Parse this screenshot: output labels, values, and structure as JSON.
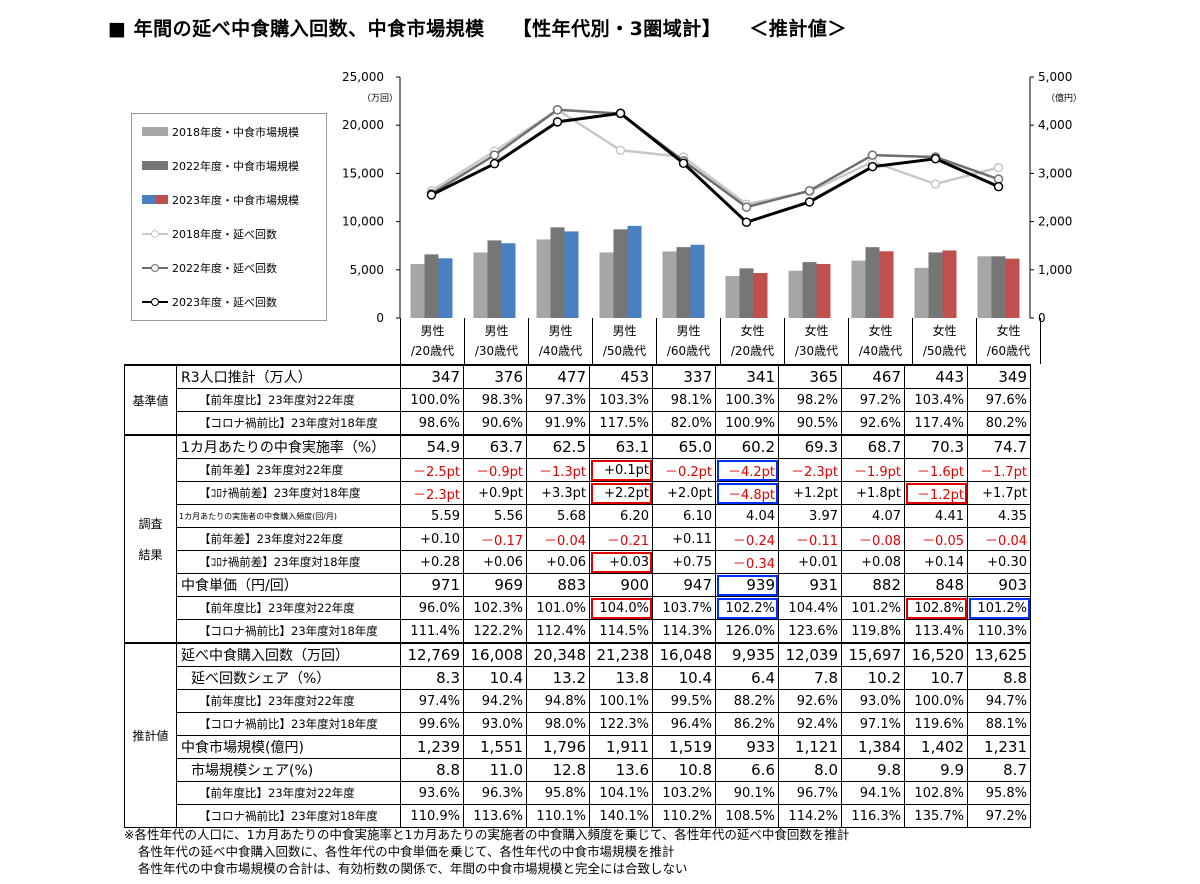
{
  "title": {
    "main": "■ 年間の延べ中食購入回数、中食市場規模",
    "bracket": "【性年代別・3圏域計】",
    "estimate": "＜推計値＞"
  },
  "chart_data": {
    "type": "bar",
    "categories": [
      "男性/20歳代",
      "男性/30歳代",
      "男性/40歳代",
      "男性/50歳代",
      "男性/60歳代",
      "女性/20歳代",
      "女性/30歳代",
      "女性/40歳代",
      "女性/50歳代",
      "女性/60歳代"
    ],
    "y_left": {
      "unit": "（万回）",
      "ylim": [
        0,
        25000
      ],
      "ticks": [
        "0",
        "5,000",
        "10,000",
        "15,000",
        "20,000",
        "25,000"
      ]
    },
    "y_right": {
      "unit": "（億円）",
      "ylim": [
        0,
        5000
      ],
      "ticks": [
        "0",
        "1,000",
        "2,000",
        "3,000",
        "4,000",
        "5,000"
      ]
    },
    "bars": [
      {
        "name": "2018年度・中食市場規模",
        "axis": "right",
        "color": "#a6a6a6",
        "values": [
          1120,
          1360,
          1630,
          1360,
          1380,
          870,
          980,
          1190,
          1040,
          1280
        ]
      },
      {
        "name": "2022年度・中食市場規模",
        "axis": "right",
        "color": "#767676",
        "values": [
          1320,
          1610,
          1880,
          1840,
          1470,
          1030,
          1160,
          1470,
          1360,
          1280
        ]
      },
      {
        "name": "2023年度・中食市場規模",
        "axis": "right",
        "colors": {
          "male": "#4a7fc1",
          "female": "#c0504d"
        },
        "values": [
          1239,
          1551,
          1796,
          1911,
          1519,
          933,
          1121,
          1384,
          1402,
          1231
        ]
      }
    ],
    "lines": [
      {
        "name": "2018年度・延べ回数",
        "axis": "left",
        "color": "#c8c8c8",
        "values": [
          13200,
          17300,
          21600,
          17400,
          16700,
          11800,
          13100,
          16200,
          13900,
          15600
        ]
      },
      {
        "name": "2022年度・延べ回数",
        "axis": "left",
        "color": "#6e6e6e",
        "values": [
          12900,
          16900,
          21600,
          21200,
          16300,
          11500,
          13200,
          16900,
          16700,
          14400
        ]
      },
      {
        "name": "2023年度・延べ回数",
        "axis": "left",
        "color": "#000000",
        "values": [
          12769,
          16008,
          20348,
          21238,
          16048,
          9935,
          12039,
          15697,
          16520,
          13625
        ]
      }
    ]
  },
  "columns": [
    {
      "top": "男性",
      "bottom": "/20歳代"
    },
    {
      "top": "男性",
      "bottom": "/30歳代"
    },
    {
      "top": "男性",
      "bottom": "/40歳代"
    },
    {
      "top": "男性",
      "bottom": "/50歳代"
    },
    {
      "top": "男性",
      "bottom": "/60歳代"
    },
    {
      "top": "女性",
      "bottom": "/20歳代"
    },
    {
      "top": "女性",
      "bottom": "/30歳代"
    },
    {
      "top": "女性",
      "bottom": "/40歳代"
    },
    {
      "top": "女性",
      "bottom": "/50歳代"
    },
    {
      "top": "女性",
      "bottom": "/60歳代"
    }
  ],
  "sections": [
    {
      "name": "基準値",
      "rows": [
        {
          "label": "R3人口推計（万人）",
          "style": "big",
          "values": [
            "347",
            "376",
            "477",
            "453",
            "337",
            "341",
            "365",
            "467",
            "443",
            "349"
          ]
        },
        {
          "label": "【前年度比】23年度対22年度",
          "style": "sub",
          "values": [
            "100.0%",
            "98.3%",
            "97.3%",
            "103.3%",
            "98.1%",
            "100.3%",
            "98.2%",
            "97.2%",
            "103.4%",
            "97.6%"
          ]
        },
        {
          "label": "【コロナ禍前比】23年度対18年度",
          "style": "sub",
          "values": [
            "98.6%",
            "90.6%",
            "91.9%",
            "117.5%",
            "82.0%",
            "100.9%",
            "90.5%",
            "92.6%",
            "117.4%",
            "80.2%"
          ]
        }
      ]
    },
    {
      "name": "調査結果",
      "rows": [
        {
          "label": "1カ月あたりの中食実施率（%）",
          "style": "big",
          "values": [
            "54.9",
            "63.7",
            "62.5",
            "63.1",
            "65.0",
            "60.2",
            "69.3",
            "68.7",
            "70.3",
            "74.7"
          ]
        },
        {
          "label": "【前年差】23年度対22年度",
          "style": "sub",
          "values": [
            "－2.5pt",
            "－0.9pt",
            "－1.3pt",
            "+0.1pt",
            "－0.2pt",
            "－4.2pt",
            "－2.3pt",
            "－1.9pt",
            "－1.6pt",
            "－1.7pt"
          ]
        },
        {
          "label": "【ｺﾛﾅ禍前差】23年度対18年度",
          "style": "sub",
          "values": [
            "－2.3pt",
            "+0.9pt",
            "+3.3pt",
            "+2.2pt",
            "+2.0pt",
            "－4.8pt",
            "+1.2pt",
            "+1.8pt",
            "－1.2pt",
            "+1.7pt"
          ]
        },
        {
          "label": "1カ月あたりの実施者の中食購入頻度(回/月)",
          "style": "tiny",
          "values": [
            "5.59",
            "5.56",
            "5.68",
            "6.20",
            "6.10",
            "4.04",
            "3.97",
            "4.07",
            "4.41",
            "4.35"
          ]
        },
        {
          "label": "【前年差】23年度対22年度",
          "style": "sub",
          "values": [
            "+0.10",
            "－0.17",
            "－0.04",
            "－0.21",
            "+0.11",
            "－0.24",
            "－0.11",
            "－0.08",
            "－0.05",
            "－0.04"
          ]
        },
        {
          "label": "【ｺﾛﾅ禍前差】23年度対18年度",
          "style": "sub",
          "values": [
            "+0.28",
            "+0.06",
            "+0.06",
            "+0.03",
            "+0.75",
            "－0.34",
            "+0.01",
            "+0.08",
            "+0.14",
            "+0.30"
          ]
        },
        {
          "label": "中食単価（円/回）",
          "style": "big",
          "values": [
            "971",
            "969",
            "883",
            "900",
            "947",
            "939",
            "931",
            "882",
            "848",
            "903"
          ]
        },
        {
          "label": "【前年度比】23年度対22年度",
          "style": "sub",
          "values": [
            "96.0%",
            "102.3%",
            "101.0%",
            "104.0%",
            "103.7%",
            "102.2%",
            "104.4%",
            "101.2%",
            "102.8%",
            "101.2%"
          ]
        },
        {
          "label": "【コロナ禍前比】23年度対18年度",
          "style": "sub",
          "values": [
            "111.4%",
            "122.2%",
            "112.4%",
            "114.5%",
            "114.3%",
            "126.0%",
            "123.6%",
            "119.8%",
            "113.4%",
            "110.3%"
          ]
        }
      ]
    },
    {
      "name": "推計値",
      "rows": [
        {
          "label": "延べ中食購入回数（万回）",
          "style": "big",
          "values": [
            "12,769",
            "16,008",
            "20,348",
            "21,238",
            "16,048",
            "9,935",
            "12,039",
            "15,697",
            "16,520",
            "13,625"
          ]
        },
        {
          "label": "延べ回数シェア（%）",
          "style": "big-indent",
          "values": [
            "8.3",
            "10.4",
            "13.2",
            "13.8",
            "10.4",
            "6.4",
            "7.8",
            "10.2",
            "10.7",
            "8.8"
          ]
        },
        {
          "label": "【前年度比】23年度対22年度",
          "style": "sub",
          "values": [
            "97.4%",
            "94.2%",
            "94.8%",
            "100.1%",
            "99.5%",
            "88.2%",
            "92.6%",
            "93.0%",
            "100.0%",
            "94.7%"
          ]
        },
        {
          "label": "【コロナ禍前比】23年度対18年度",
          "style": "sub",
          "values": [
            "99.6%",
            "93.0%",
            "98.0%",
            "122.3%",
            "96.4%",
            "86.2%",
            "92.4%",
            "97.1%",
            "119.6%",
            "88.1%"
          ]
        },
        {
          "label": "中食市場規模(億円)",
          "style": "big",
          "values": [
            "1,239",
            "1,551",
            "1,796",
            "1,911",
            "1,519",
            "933",
            "1,121",
            "1,384",
            "1,402",
            "1,231"
          ]
        },
        {
          "label": "市場規模シェア(%)",
          "style": "big-indent",
          "values": [
            "8.8",
            "11.0",
            "12.8",
            "13.6",
            "10.8",
            "6.6",
            "8.0",
            "9.8",
            "9.9",
            "8.7"
          ]
        },
        {
          "label": "【前年度比】23年度対22年度",
          "style": "sub",
          "values": [
            "93.6%",
            "96.3%",
            "95.8%",
            "104.1%",
            "103.2%",
            "90.1%",
            "96.7%",
            "94.1%",
            "102.8%",
            "95.8%"
          ]
        },
        {
          "label": "【コロナ禍前比】23年度対18年度",
          "style": "sub",
          "values": [
            "110.9%",
            "113.6%",
            "110.1%",
            "140.1%",
            "110.2%",
            "108.5%",
            "114.2%",
            "116.3%",
            "135.7%",
            "97.2%"
          ]
        }
      ]
    }
  ],
  "notes": [
    "※各性年代の人口に、1カ月あたりの中食実施率と1カ月あたりの実施者の中食購入頻度を乗じて、各性年代の延べ中食回数を推計",
    "各性年代の延べ中食購入回数に、各性年代の中食単価を乗じて、各性年代の中食市場規模を推計",
    "各性年代の中食市場規模の合計は、有効桁数の関係で、年間の中食市場規模と完全には合致しない"
  ]
}
